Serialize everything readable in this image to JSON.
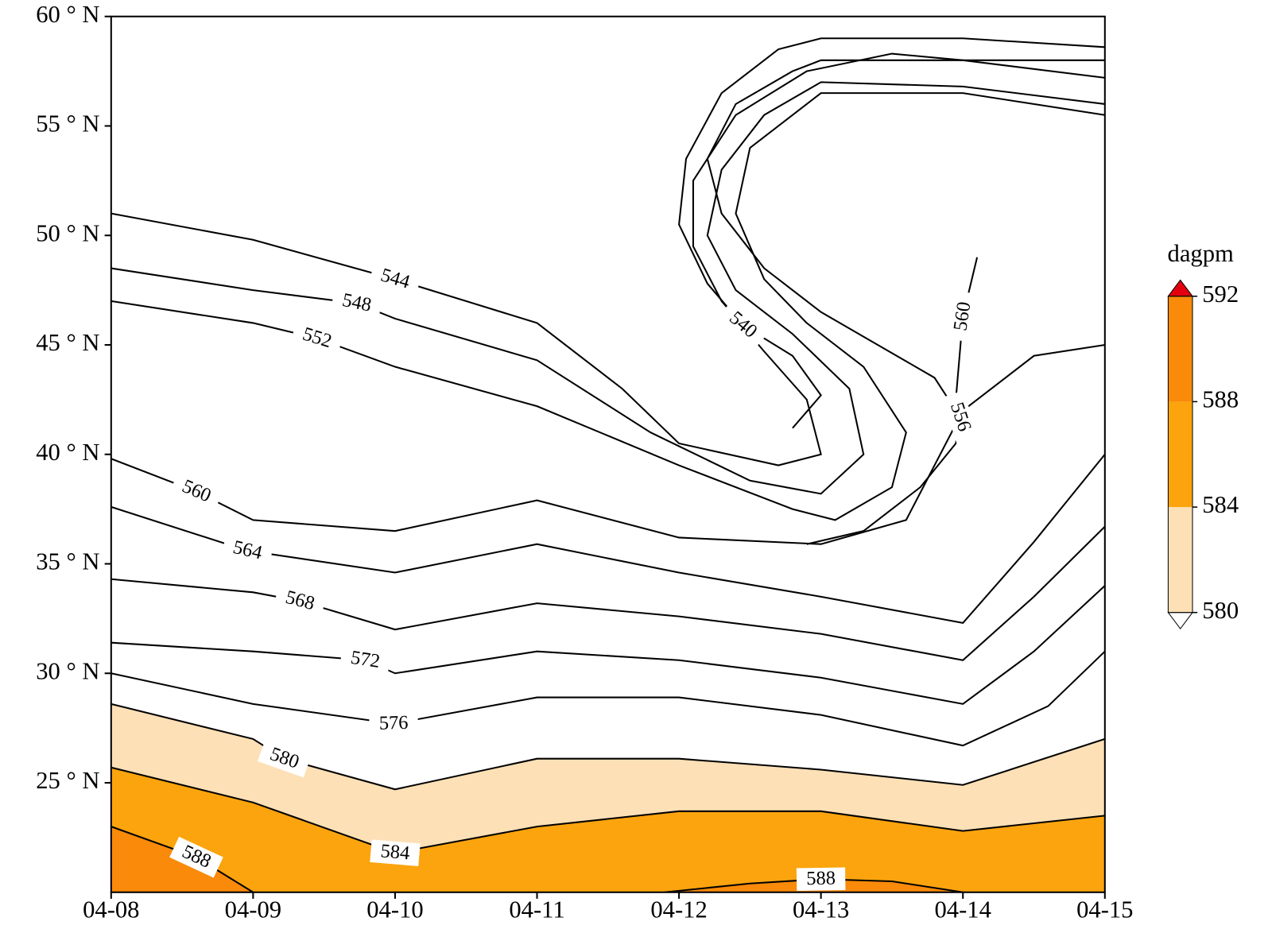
{
  "chart_data": {
    "type": "contour",
    "xlim": [
      8,
      15
    ],
    "xticks": [
      {
        "value": 8,
        "label": "04-08"
      },
      {
        "value": 9,
        "label": "04-09"
      },
      {
        "value": 10,
        "label": "04-10"
      },
      {
        "value": 11,
        "label": "04-11"
      },
      {
        "value": 12,
        "label": "04-12"
      },
      {
        "value": 13,
        "label": "04-13"
      },
      {
        "value": 14,
        "label": "04-14"
      },
      {
        "value": 15,
        "label": "04-15"
      }
    ],
    "ylim": [
      20,
      60
    ],
    "yticks": [
      {
        "value": 25,
        "label": "25 ° N"
      },
      {
        "value": 30,
        "label": "30 ° N"
      },
      {
        "value": 35,
        "label": "35 ° N"
      },
      {
        "value": 40,
        "label": "40 ° N"
      },
      {
        "value": 45,
        "label": "45 ° N"
      },
      {
        "value": 50,
        "label": "50 ° N"
      },
      {
        "value": 55,
        "label": "55 ° N"
      },
      {
        "value": 60,
        "label": "60 ° N"
      }
    ],
    "colorbar": {
      "label": "dagpm",
      "ticks": [
        580,
        584,
        588,
        592
      ],
      "colors": [
        "#fde0b6",
        "#fba40e",
        "#f98a0a"
      ],
      "over_color": "#e3000f",
      "under_color": "#ffffff"
    },
    "line_color": "#000000",
    "contours": [
      {
        "level": 580,
        "x": [
          8,
          9,
          9.22,
          10,
          11,
          12,
          13,
          14,
          15
        ],
        "y": [
          28.6,
          27.0,
          26.1,
          24.7,
          26.1,
          26.1,
          25.6,
          24.9,
          27.0
        ]
      },
      {
        "level": 584,
        "x": [
          8,
          9,
          10,
          11,
          12,
          13,
          14,
          15
        ],
        "y": [
          25.7,
          24.1,
          21.8,
          23.0,
          23.7,
          23.7,
          22.8,
          23.5
        ]
      },
      {
        "level": 588,
        "x": [
          8,
          8.6,
          9.0
        ],
        "y": [
          23.0,
          21.6,
          20.0
        ]
      },
      {
        "level": 588,
        "x": [
          11.9,
          12.5,
          13.0,
          13.5,
          14.0
        ],
        "y": [
          20.0,
          20.4,
          20.6,
          20.5,
          20.0
        ]
      },
      {
        "level": 576,
        "x": [
          8,
          9,
          9.99,
          11,
          12,
          13,
          14,
          14.6,
          15
        ],
        "y": [
          30.0,
          28.6,
          27.7,
          28.9,
          28.9,
          28.1,
          26.7,
          28.5,
          31.0
        ]
      },
      {
        "level": 572,
        "x": [
          8,
          9,
          9.79,
          10,
          11,
          12,
          13,
          14,
          14.5,
          15
        ],
        "y": [
          31.4,
          31.0,
          30.6,
          30.0,
          31.0,
          30.6,
          29.8,
          28.6,
          31.0,
          34.0
        ]
      },
      {
        "level": 568,
        "x": [
          8,
          9,
          9.33,
          10,
          11,
          12,
          13,
          14,
          14.5,
          15
        ],
        "y": [
          34.3,
          33.7,
          33.3,
          32.0,
          33.2,
          32.6,
          31.8,
          30.6,
          33.5,
          36.7
        ]
      },
      {
        "level": 564,
        "x": [
          8,
          8.96,
          10,
          11,
          12,
          13,
          14,
          14.5,
          15
        ],
        "y": [
          37.6,
          35.6,
          34.6,
          35.9,
          34.6,
          33.5,
          32.3,
          36.0,
          40.0
        ]
      },
      {
        "level": 560,
        "x": [
          8,
          8.6,
          9,
          10,
          11,
          12,
          13,
          13.6,
          14.0,
          14.5,
          15
        ],
        "y": [
          39.8,
          38.3,
          37.0,
          36.5,
          37.9,
          36.2,
          35.9,
          37.0,
          42.0,
          44.5,
          45.0
        ]
      },
      {
        "level": 560,
        "x": [
          13.95,
          14.0,
          14.1
        ],
        "y": [
          42.5,
          46.3,
          49.0
        ]
      },
      {
        "level": 556,
        "x": [
          12.9,
          13.3,
          13.7,
          13.95,
          13.98,
          13.8,
          13.4,
          13.0,
          12.6,
          12.3,
          12.2,
          12.4,
          12.8,
          13.0,
          14,
          15
        ],
        "y": [
          35.9,
          36.5,
          38.5,
          40.5,
          41.7,
          43.5,
          45.0,
          46.5,
          48.5,
          51.0,
          53.5,
          56.0,
          57.5,
          58.0,
          58.0,
          58.0
        ]
      },
      {
        "level": 552,
        "x": [
          8,
          9,
          9.45,
          10,
          11,
          12,
          12.8,
          13.1,
          13.5,
          13.6,
          13.3,
          12.9,
          12.6,
          12.4,
          12.5,
          12.9,
          13.0,
          14,
          15
        ],
        "y": [
          47.0,
          46.0,
          45.3,
          44.0,
          42.2,
          39.5,
          37.5,
          37.0,
          38.5,
          41.0,
          44.0,
          46.0,
          48.0,
          51.0,
          54.0,
          56.0,
          56.5,
          56.5,
          55.5
        ]
      },
      {
        "level": 548,
        "x": [
          8,
          9,
          9.73,
          10,
          11,
          11.8,
          12.5,
          13.0,
          13.3,
          13.2,
          12.8,
          12.4,
          12.2,
          12.3,
          12.6,
          13.0,
          14,
          15
        ],
        "y": [
          48.5,
          47.5,
          46.9,
          46.2,
          44.3,
          41.0,
          38.8,
          38.2,
          40.0,
          43.0,
          45.5,
          47.5,
          50.0,
          53.0,
          55.5,
          57.0,
          56.8,
          56.0
        ]
      },
      {
        "level": 544,
        "x": [
          8,
          9,
          10,
          11,
          11.6,
          12,
          12.7,
          13.0,
          12.9,
          12.6,
          12.3,
          12.1,
          12.1,
          12.4,
          12.9,
          13.5,
          14,
          15
        ],
        "y": [
          51.0,
          49.8,
          48.0,
          46.0,
          43.0,
          40.5,
          39.5,
          40.0,
          42.5,
          44.7,
          47.0,
          49.5,
          52.5,
          55.5,
          57.5,
          58.3,
          58.0,
          57.2
        ]
      },
      {
        "level": 540,
        "x": [
          12.8,
          13.0,
          12.8,
          12.45,
          12.2,
          12.0,
          12.05,
          12.3,
          12.7,
          13.0,
          14,
          15
        ],
        "y": [
          41.2,
          42.7,
          44.5,
          45.9,
          47.8,
          50.5,
          53.5,
          56.5,
          58.5,
          59.0,
          59.0,
          58.6
        ]
      }
    ]
  }
}
